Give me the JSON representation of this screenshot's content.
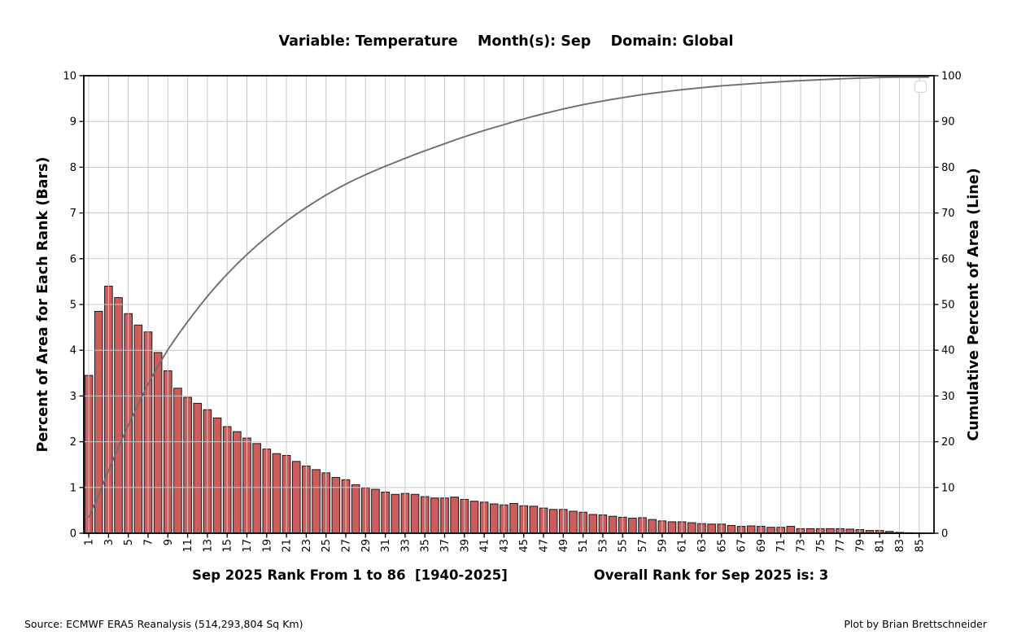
{
  "header": {
    "title": "Variable: Temperature    Month(s): Sep    Domain: Global"
  },
  "axes": {
    "left_label": "Percent of Area for Each Rank (Bars)",
    "right_label": "Cumulative Percent of Area (Line)",
    "left_ticks": [
      0,
      1,
      2,
      3,
      4,
      5,
      6,
      7,
      8,
      9,
      10
    ],
    "right_ticks": [
      0,
      10,
      20,
      30,
      40,
      50,
      60,
      70,
      80,
      90,
      100
    ],
    "x_tick_labels": [
      1,
      3,
      5,
      7,
      9,
      11,
      13,
      15,
      17,
      19,
      21,
      23,
      25,
      27,
      29,
      31,
      33,
      35,
      37,
      39,
      41,
      43,
      45,
      47,
      49,
      51,
      53,
      55,
      57,
      59,
      61,
      63,
      65,
      67,
      69,
      71,
      73,
      75,
      77,
      79,
      81,
      83,
      85
    ]
  },
  "captions": {
    "xlabel": "Sep 2025 Rank From 1 to 86  [1940-2025]",
    "overall": "Overall Rank for Sep 2025 is: 3"
  },
  "footer": {
    "source": "Source: ECMWF ERA5 Reanalysis (514,293,804 Sq Km)",
    "credit": "Plot by Brian Brettschneider"
  },
  "colors": {
    "bar_fill": "#CD5C5C",
    "bar_edge": "#1a1a1a",
    "line": "#6e6e6e",
    "grid": "#c8c8c8",
    "spine": "#000000",
    "legend_border": "#d8d8d8"
  },
  "chart_data": {
    "type": "bar",
    "title": "Variable: Temperature    Month(s): Sep    Domain: Global",
    "xlabel": "Sep 2025 Rank From 1 to 86  [1940-2025]",
    "ylabel": "Percent of Area for Each Rank (Bars)",
    "ylabel_right": "Cumulative Percent of Area (Line)",
    "annotation": "Overall Rank for Sep 2025 is: 3",
    "x_range": [
      1,
      86
    ],
    "ylim_left": [
      0,
      10
    ],
    "ylim_right": [
      0,
      100
    ],
    "grid": true,
    "legend_position": "upper-right-empty",
    "series": [
      {
        "name": "Percent of Area for Each Rank",
        "type": "bar",
        "yaxis": "left",
        "color": "#CD5C5C",
        "values": [
          3.45,
          4.85,
          5.4,
          5.15,
          4.8,
          4.55,
          4.4,
          3.95,
          3.55,
          3.17,
          2.97,
          2.84,
          2.7,
          2.52,
          2.33,
          2.22,
          2.08,
          1.96,
          1.84,
          1.74,
          1.7,
          1.57,
          1.47,
          1.39,
          1.32,
          1.22,
          1.17,
          1.06,
          0.99,
          0.96,
          0.9,
          0.85,
          0.87,
          0.85,
          0.8,
          0.77,
          0.77,
          0.79,
          0.74,
          0.7,
          0.68,
          0.64,
          0.62,
          0.65,
          0.6,
          0.59,
          0.55,
          0.52,
          0.52,
          0.48,
          0.46,
          0.41,
          0.4,
          0.37,
          0.35,
          0.33,
          0.34,
          0.3,
          0.27,
          0.25,
          0.25,
          0.23,
          0.21,
          0.2,
          0.2,
          0.17,
          0.15,
          0.16,
          0.15,
          0.13,
          0.13,
          0.15,
          0.1,
          0.1,
          0.1,
          0.1,
          0.1,
          0.09,
          0.08,
          0.06,
          0.06,
          0.04,
          0.02,
          0.01,
          0.005,
          0
        ]
      },
      {
        "name": "Cumulative Percent of Area",
        "type": "line",
        "yaxis": "right",
        "color": "#6e6e6e",
        "values": [
          3.45,
          8.3,
          13.7,
          18.85,
          23.65,
          28.2,
          32.6,
          36.55,
          40.1,
          43.27,
          46.24,
          49.08,
          51.78,
          54.3,
          56.63,
          58.85,
          60.93,
          62.89,
          64.73,
          66.47,
          68.17,
          69.74,
          71.21,
          72.6,
          73.92,
          75.14,
          76.31,
          77.37,
          78.36,
          79.32,
          80.22,
          81.07,
          81.94,
          82.79,
          83.59,
          84.36,
          85.13,
          85.92,
          86.66,
          87.36,
          88.04,
          88.68,
          89.3,
          89.95,
          90.55,
          91.14,
          91.69,
          92.21,
          92.73,
          93.21,
          93.67,
          94.08,
          94.48,
          94.85,
          95.2,
          95.53,
          95.87,
          96.17,
          96.44,
          96.69,
          96.94,
          97.17,
          97.38,
          97.58,
          97.78,
          97.95,
          98.1,
          98.26,
          98.41,
          98.54,
          98.67,
          98.82,
          98.92,
          99.02,
          99.12,
          99.22,
          99.32,
          99.41,
          99.49,
          99.55,
          99.61,
          99.65,
          99.67,
          99.68,
          99.69,
          99.69
        ]
      }
    ]
  }
}
